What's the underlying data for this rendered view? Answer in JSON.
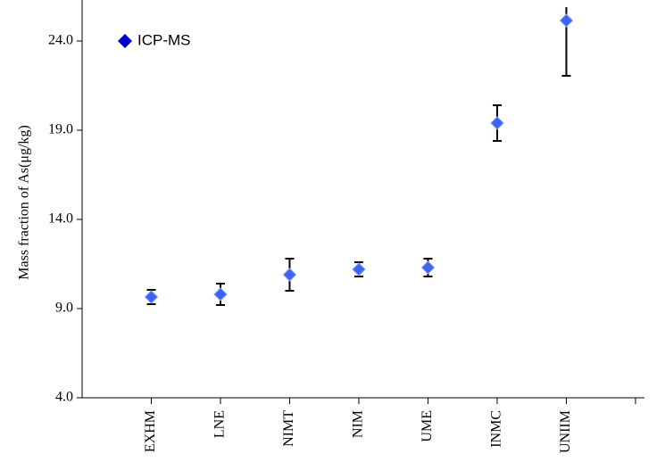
{
  "chart_data": {
    "type": "errorbar",
    "y_label": "Mass fraction of As(μg/kg)",
    "categories": [
      "EXHM",
      "LNE",
      "NIMT",
      "NIM",
      "UME",
      "INMC",
      "UNIIM",
      null
    ],
    "series": [
      {
        "name": "ICP-MS",
        "color": "#3d63f0",
        "values": [
          9.65,
          9.8,
          10.9,
          11.2,
          11.3,
          19.4,
          25.15,
          null
        ],
        "errors": [
          0.4,
          0.6,
          0.9,
          0.4,
          0.5,
          1.0,
          3.1,
          null
        ]
      }
    ],
    "ylim": [
      4,
      25.9
    ],
    "yticks": [
      {
        "value": 4,
        "label": "4.0"
      },
      {
        "value": 9,
        "label": "9.0"
      },
      {
        "value": 14,
        "label": "14.0"
      },
      {
        "value": 19,
        "label": "19.0"
      },
      {
        "value": 24,
        "label": "24.0"
      }
    ],
    "legend": "top-left"
  }
}
